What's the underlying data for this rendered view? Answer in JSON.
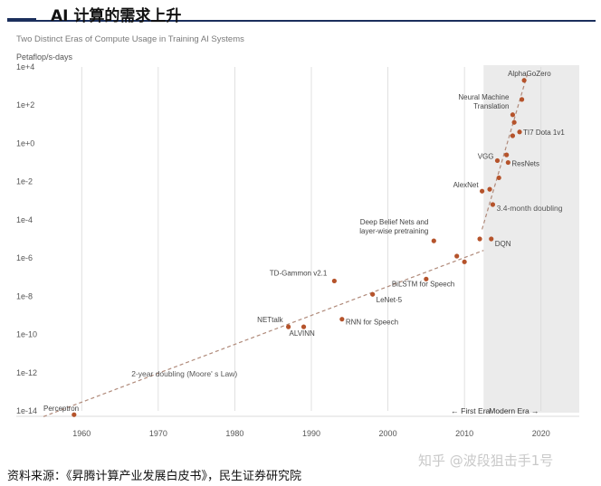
{
  "header": {
    "title": "AI 计算的需求上升"
  },
  "footer": {
    "source": "资料来源：《昇腾计算产业发展白皮书》，民生证券研究院"
  },
  "watermark": "知乎 @波段狙击手1号",
  "colors": {
    "point": "#b5532b",
    "trend": "#b08a7a",
    "modern_shade": "#ebebeb",
    "grid": "#d9d9d9",
    "header_rule": "#1b2f5c"
  },
  "chart_data": {
    "type": "scatter",
    "title": "Two Distinct Eras of Compute Usage in Training AI Systems",
    "ylabel": "Petaflop/s-days",
    "xlabel": "",
    "y_log": true,
    "xlim": [
      1955,
      2025
    ],
    "ylim_exp": [
      -14,
      4
    ],
    "x_ticks": [
      1960,
      1970,
      1980,
      1990,
      2000,
      2010,
      2020
    ],
    "y_ticks": [
      {
        "exp": 4,
        "label": "1e+4"
      },
      {
        "exp": 2,
        "label": "1e+2"
      },
      {
        "exp": 0,
        "label": "1e+0"
      },
      {
        "exp": -2,
        "label": "1e-2"
      },
      {
        "exp": -4,
        "label": "1e-4"
      },
      {
        "exp": -6,
        "label": "1e-6"
      },
      {
        "exp": -8,
        "label": "1e-8"
      },
      {
        "exp": -10,
        "label": "1e-10"
      },
      {
        "exp": -12,
        "label": "1e-12"
      },
      {
        "exp": -14,
        "label": "1e-14"
      }
    ],
    "modern_era_start": 2012.5,
    "era_labels": {
      "first": "← First Era",
      "modern": "Modern Era →"
    },
    "trend_lines": [
      {
        "label": "2-year doubling (Moore' s Law)",
        "from": [
          1955,
          -14.3
        ],
        "to": [
          2012.5,
          -5.6
        ]
      },
      {
        "label": "3.4-month doubling",
        "from": [
          2012.3,
          -4.5
        ],
        "to": [
          2018.2,
          3.6
        ]
      }
    ],
    "points": [
      {
        "name": "Perceptron",
        "x": 1959,
        "y": -14.2
      },
      {
        "name": "NETtalk",
        "x": 1987,
        "y": -9.6
      },
      {
        "name": "ALVINN",
        "x": 1989,
        "y": -9.6
      },
      {
        "name": "TD-Gammon v2.1",
        "x": 1993,
        "y": -7.2
      },
      {
        "name": "RNN for Speech",
        "x": 1994,
        "y": -9.2
      },
      {
        "name": "LeNet-5",
        "x": 1998,
        "y": -7.9
      },
      {
        "name": "BiLSTM for Speech",
        "x": 2005,
        "y": -7.1
      },
      {
        "name": "Deep Belief Nets and layer-wise pretraining",
        "x": 2006,
        "y": -5.1
      },
      {
        "name": "",
        "x": 2009,
        "y": -5.9
      },
      {
        "name": "",
        "x": 2010,
        "y": -6.2
      },
      {
        "name": "",
        "x": 2012,
        "y": -5.0
      },
      {
        "name": "DQN",
        "x": 2013.5,
        "y": -5.0
      },
      {
        "name": "AlexNet",
        "x": 2012.3,
        "y": -2.5
      },
      {
        "name": "",
        "x": 2013.3,
        "y": -2.4
      },
      {
        "name": "",
        "x": 2013.7,
        "y": -3.2
      },
      {
        "name": "VGG",
        "x": 2014.3,
        "y": -0.9
      },
      {
        "name": "ResNets",
        "x": 2015.7,
        "y": -1.0
      },
      {
        "name": "",
        "x": 2014.5,
        "y": -1.8
      },
      {
        "name": "",
        "x": 2015.5,
        "y": -0.6
      },
      {
        "name": "Neural Machine Translation",
        "x": 2016.3,
        "y": 1.5
      },
      {
        "name": "",
        "x": 2016.5,
        "y": 1.1
      },
      {
        "name": "",
        "x": 2016.3,
        "y": 0.4
      },
      {
        "name": "TI7 Dota 1v1",
        "x": 2017.2,
        "y": 0.6
      },
      {
        "name": "AlphaGoZero",
        "x": 2017.8,
        "y": 3.3
      },
      {
        "name": "",
        "x": 2017.5,
        "y": 2.3
      }
    ]
  }
}
